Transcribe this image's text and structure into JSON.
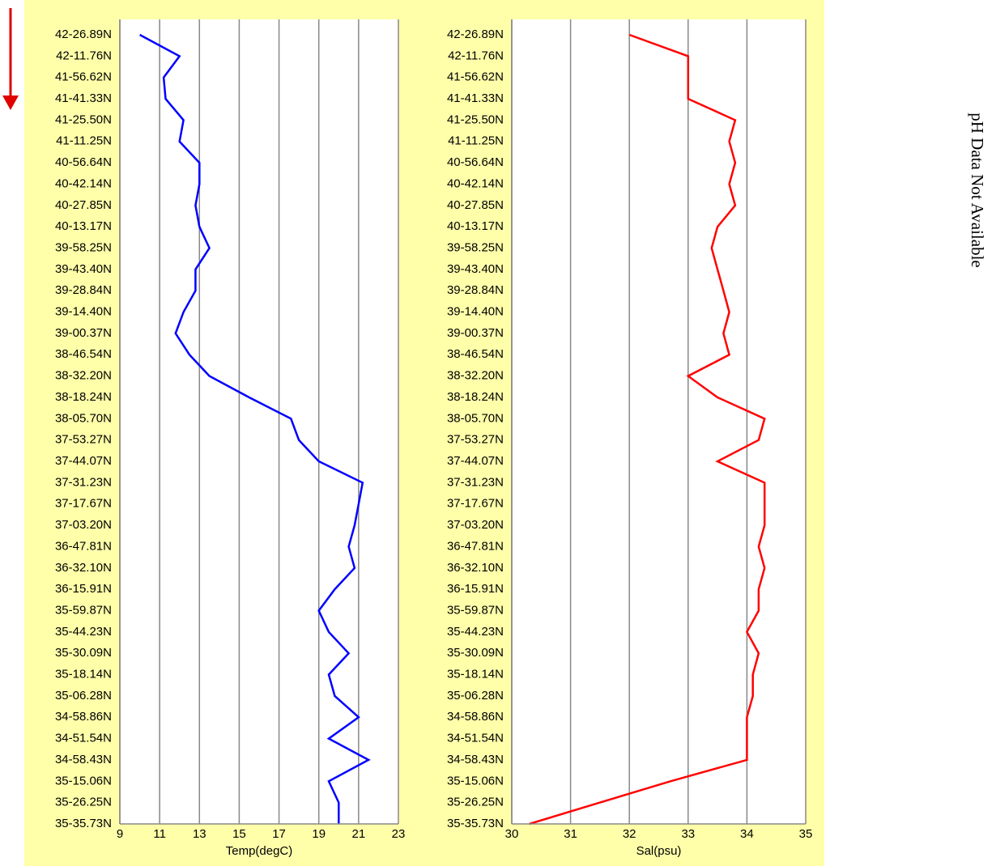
{
  "chart_data": [
    {
      "type": "line",
      "xlabel": "Temp(degC)",
      "color": "#0000ff",
      "xlim": [
        9,
        23
      ],
      "xticks": [
        9,
        11,
        13,
        15,
        17,
        19,
        21,
        23
      ],
      "grid": true,
      "categories": [
        "42-26.89N",
        "42-11.76N",
        "41-56.62N",
        "41-41.33N",
        "41-25.50N",
        "41-11.25N",
        "40-56.64N",
        "40-42.14N",
        "40-27.85N",
        "40-13.17N",
        "39-58.25N",
        "39-43.40N",
        "39-28.84N",
        "39-14.40N",
        "39-00.37N",
        "38-46.54N",
        "38-32.20N",
        "38-18.24N",
        "38-05.70N",
        "37-53.27N",
        "37-44.07N",
        "37-31.23N",
        "37-17.67N",
        "37-03.20N",
        "36-47.81N",
        "36-32.10N",
        "36-15.91N",
        "35-59.87N",
        "35-44.23N",
        "35-30.09N",
        "35-18.14N",
        "35-06.28N",
        "34-58.86N",
        "34-51.54N",
        "34-58.43N",
        "35-15.06N",
        "35-26.25N",
        "35-35.73N"
      ],
      "values": [
        10.0,
        12.0,
        11.2,
        11.3,
        12.2,
        12.0,
        13.0,
        13.0,
        12.8,
        13.0,
        13.5,
        12.8,
        12.8,
        12.2,
        11.8,
        12.5,
        13.5,
        15.5,
        17.6,
        18.0,
        19.0,
        21.2,
        21.0,
        20.8,
        20.5,
        20.8,
        19.8,
        19.0,
        19.5,
        20.5,
        19.5,
        19.8,
        21.0,
        19.5,
        21.5,
        19.5,
        20.0,
        20.0
      ]
    },
    {
      "type": "line",
      "xlabel": "Sal(psu)",
      "color": "#ff0000",
      "xlim": [
        30,
        35
      ],
      "xticks": [
        30,
        31,
        32,
        33,
        34,
        35
      ],
      "grid": true,
      "categories": [
        "42-26.89N",
        "42-11.76N",
        "41-56.62N",
        "41-41.33N",
        "41-25.50N",
        "41-11.25N",
        "40-56.64N",
        "40-42.14N",
        "40-27.85N",
        "40-13.17N",
        "39-58.25N",
        "39-43.40N",
        "39-28.84N",
        "39-14.40N",
        "39-00.37N",
        "38-46.54N",
        "38-32.20N",
        "38-18.24N",
        "38-05.70N",
        "37-53.27N",
        "37-44.07N",
        "37-31.23N",
        "37-17.67N",
        "37-03.20N",
        "36-47.81N",
        "36-32.10N",
        "36-15.91N",
        "35-59.87N",
        "35-44.23N",
        "35-30.09N",
        "35-18.14N",
        "35-06.28N",
        "34-58.86N",
        "34-51.54N",
        "34-58.43N",
        "35-15.06N",
        "35-26.25N",
        "35-35.73N"
      ],
      "values": [
        32.0,
        33.0,
        33.0,
        33.0,
        33.8,
        33.7,
        33.8,
        33.7,
        33.8,
        33.5,
        33.4,
        33.5,
        33.6,
        33.7,
        33.6,
        33.7,
        33.0,
        33.5,
        34.3,
        34.2,
        33.5,
        34.3,
        34.3,
        34.3,
        34.2,
        34.3,
        34.2,
        34.2,
        34.0,
        34.2,
        34.1,
        34.1,
        34.0,
        34.0,
        34.0,
        32.7,
        31.5,
        30.3
      ]
    }
  ],
  "annotation": "pH Data Not Available"
}
